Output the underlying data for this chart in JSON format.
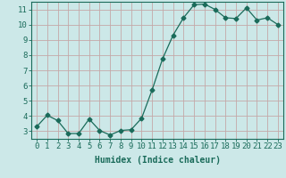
{
  "x": [
    0,
    1,
    2,
    3,
    4,
    5,
    6,
    7,
    8,
    9,
    10,
    11,
    12,
    13,
    14,
    15,
    16,
    17,
    18,
    19,
    20,
    21,
    22,
    23
  ],
  "y": [
    3.3,
    4.05,
    3.7,
    2.85,
    2.85,
    3.8,
    3.05,
    2.75,
    3.05,
    3.1,
    3.85,
    5.7,
    7.75,
    9.3,
    10.45,
    11.3,
    11.35,
    11.0,
    10.45,
    10.4,
    11.1,
    10.3,
    10.45,
    10.0
  ],
  "line_color": "#1a6b5a",
  "marker": "D",
  "marker_size": 2.5,
  "bg_color": "#cce8e8",
  "grid_color": "#c4a8a8",
  "axis_color": "#1a6b5a",
  "xlabel": "Humidex (Indice chaleur)",
  "xlim": [
    -0.5,
    23.5
  ],
  "ylim": [
    2.5,
    11.5
  ],
  "yticks": [
    3,
    4,
    5,
    6,
    7,
    8,
    9,
    10,
    11
  ],
  "xtick_labels": [
    "0",
    "1",
    "2",
    "3",
    "4",
    "5",
    "6",
    "7",
    "8",
    "9",
    "10",
    "11",
    "12",
    "13",
    "14",
    "15",
    "16",
    "17",
    "18",
    "19",
    "20",
    "21",
    "22",
    "23"
  ],
  "label_fontsize": 7,
  "tick_fontsize": 6.5
}
